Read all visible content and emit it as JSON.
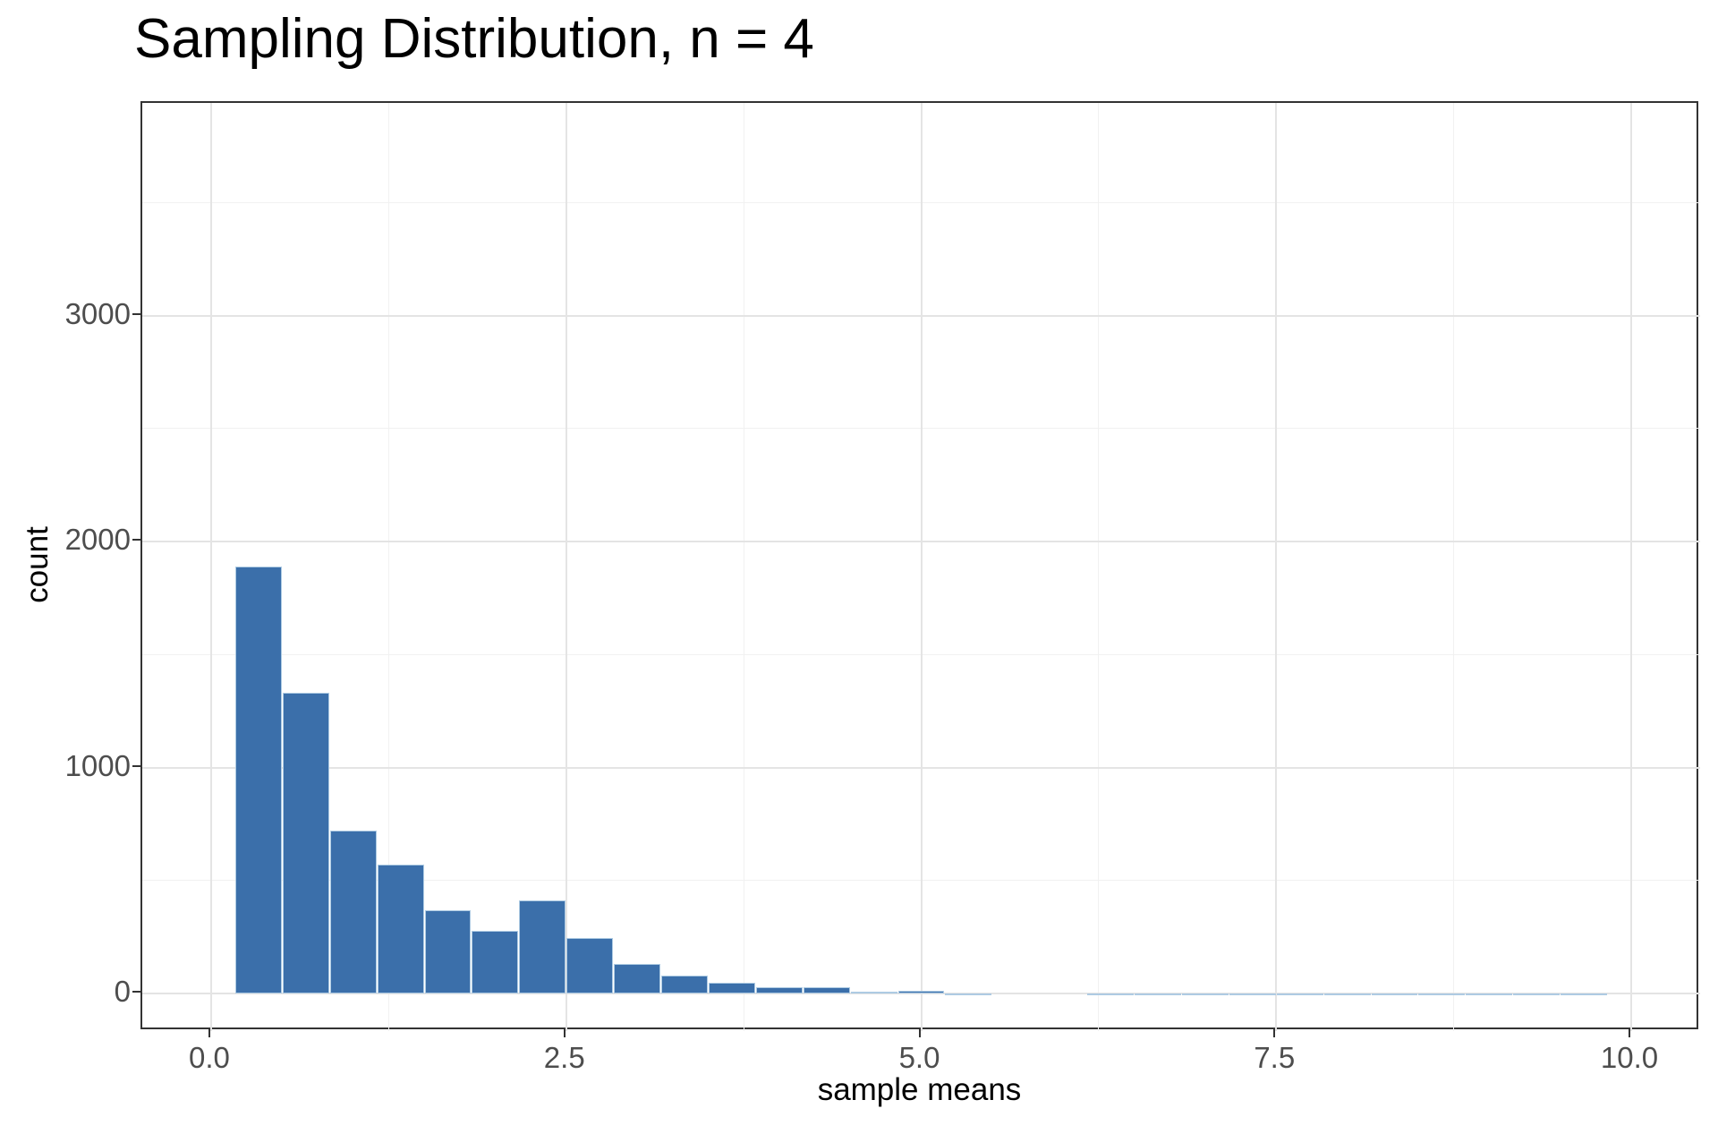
{
  "title": "Sampling Distribution, n = 4",
  "chart_data": {
    "type": "bar",
    "subtype": "histogram",
    "title": "Sampling Distribution, n = 4",
    "xlabel": "sample means",
    "ylabel": "count",
    "bin_width": 0.3333,
    "bins_left": [
      0.1667,
      0.5,
      0.8333,
      1.1667,
      1.5,
      1.8333,
      2.1667,
      2.5,
      2.8333,
      3.1667,
      3.5,
      3.8333,
      4.1667,
      4.5,
      4.8333,
      5.1667,
      5.5,
      5.8333,
      6.1667,
      6.5,
      6.8333,
      7.1667,
      7.5,
      7.8333,
      8.1667,
      8.5,
      8.8333,
      9.1667,
      9.5
    ],
    "counts": [
      1890,
      1330,
      720,
      570,
      370,
      277,
      413,
      247,
      130,
      80,
      46,
      30,
      27,
      8,
      14,
      2,
      0,
      0,
      1,
      1,
      1,
      1,
      1,
      1,
      1,
      1,
      1,
      1,
      1
    ],
    "x_ticks": [
      {
        "value": 0,
        "label": "0.0"
      },
      {
        "value": 2.5,
        "label": "2.5"
      },
      {
        "value": 5,
        "label": "5.0"
      },
      {
        "value": 7.5,
        "label": "7.5"
      },
      {
        "value": 10,
        "label": "10.0"
      }
    ],
    "y_ticks": [
      {
        "value": 0,
        "label": "0"
      },
      {
        "value": 1000,
        "label": "1000"
      },
      {
        "value": 2000,
        "label": "2000"
      },
      {
        "value": 3000,
        "label": "3000"
      }
    ],
    "x_minor": [
      1.25,
      3.75,
      6.25,
      8.75
    ],
    "y_minor": [
      500,
      1500,
      2500,
      3500
    ],
    "xlim": [
      -0.485,
      10.485
    ],
    "ylim": [
      -166,
      3941
    ],
    "grid": true,
    "legend": "none",
    "colors": {
      "bar_fill": "#3B6FAA",
      "bar_border": "#AECBE3",
      "grid_major": "#E4E4E4",
      "grid_minor": "#F1F1F1",
      "panel_border": "#333333",
      "axis_text": "#4D4D4D",
      "axis_title": "#000000",
      "title": "#000000",
      "background": "#FFFFFF"
    }
  }
}
